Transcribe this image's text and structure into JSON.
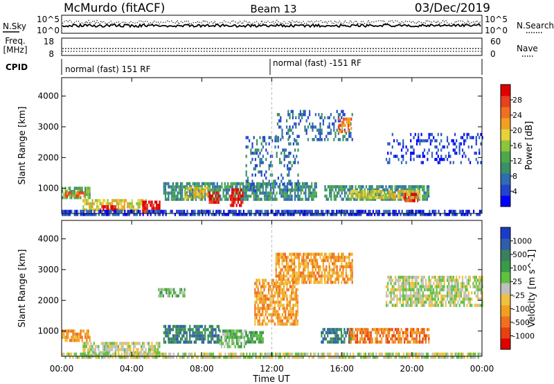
{
  "header": {
    "station": "McMurdo (fitACF)",
    "beam": "Beam 13",
    "date": "03/Dec/2019"
  },
  "top_panels": {
    "nsky_label": "N.Sky",
    "nsky_ticks": [
      "10^5",
      "10^0"
    ],
    "nsearch_label": "N.Search",
    "nsearch_ticks": [
      "10^5",
      "10^0"
    ],
    "freq_label": "Freq.",
    "freq_unit": "[MHz]",
    "freq_ticks": [
      "18",
      "8"
    ],
    "nave_label": "Nave",
    "nave_ticks": [
      "60",
      "0"
    ],
    "cpid_label": "CPID",
    "cpid_segments": [
      {
        "label": "normal (fast) 151 RF",
        "start_hour": 0,
        "end_hour": 12
      },
      {
        "label": "normal (fast) -151 RF",
        "start_hour": 12,
        "end_hour": 24
      }
    ]
  },
  "chart_data": [
    {
      "type": "heatmap",
      "title": "Power",
      "ylabel": "Slant Range [km]",
      "xlabel": "Time UT",
      "x_ticks": [
        "00:00",
        "04:00",
        "08:00",
        "12:00",
        "16:00",
        "20:00",
        "00:00"
      ],
      "xlim_hours": [
        0,
        24
      ],
      "y_ticks": [
        1000,
        2000,
        3000,
        4000
      ],
      "ylim": [
        180,
        4600
      ],
      "colorbar_label": "Power [dB]",
      "colorbar_ticks": [
        "4",
        "8",
        "12",
        "16",
        "20",
        "24",
        "28"
      ],
      "colorbar_colors": [
        "#0000ff",
        "#2244cc",
        "#2e6db3",
        "#3a8f66",
        "#4ea84a",
        "#8cc43c",
        "#e6d23a",
        "#f0a020",
        "#f07020",
        "#e84020",
        "#e00000"
      ],
      "blobs": [
        {
          "t0": 0.0,
          "t1": 1.6,
          "r0": 650,
          "r1": 1050,
          "level": 4
        },
        {
          "t0": 0.2,
          "t1": 1.3,
          "r0": 700,
          "r1": 900,
          "level": 8
        },
        {
          "t0": 1.2,
          "t1": 4.8,
          "r0": 300,
          "r1": 650,
          "level": 6
        },
        {
          "t0": 2.0,
          "t1": 3.2,
          "r0": 300,
          "r1": 450,
          "level": 10
        },
        {
          "t0": 4.6,
          "t1": 5.6,
          "r0": 250,
          "r1": 600,
          "level": 10
        },
        {
          "t0": 5.8,
          "t1": 14.5,
          "r0": 600,
          "r1": 1200,
          "level": 3
        },
        {
          "t0": 7.0,
          "t1": 8.4,
          "r0": 700,
          "r1": 1050,
          "level": 6
        },
        {
          "t0": 8.4,
          "t1": 9.0,
          "r0": 500,
          "r1": 900,
          "level": 10
        },
        {
          "t0": 9.6,
          "t1": 10.3,
          "r0": 450,
          "r1": 1000,
          "level": 10
        },
        {
          "t0": 10.5,
          "t1": 13.5,
          "r0": 900,
          "r1": 2700,
          "level": 2
        },
        {
          "t0": 12.2,
          "t1": 16.6,
          "r0": 2600,
          "r1": 3550,
          "level": 2
        },
        {
          "t0": 15.8,
          "t1": 16.5,
          "r0": 2800,
          "r1": 3300,
          "level": 8
        },
        {
          "t0": 15.0,
          "t1": 21.0,
          "r0": 650,
          "r1": 1100,
          "level": 3
        },
        {
          "t0": 16.5,
          "t1": 20.5,
          "r0": 650,
          "r1": 950,
          "level": 6
        },
        {
          "t0": 19.5,
          "t1": 20.3,
          "r0": 600,
          "r1": 850,
          "level": 9
        },
        {
          "t0": 0.0,
          "t1": 24.0,
          "r0": 190,
          "r1": 300,
          "level": 1
        },
        {
          "t0": 18.5,
          "t1": 24.0,
          "r0": 1800,
          "r1": 2800,
          "level": 1
        }
      ]
    },
    {
      "type": "heatmap",
      "title": "Velocity",
      "ylabel": "Slant Range [km]",
      "xlabel": "Time UT",
      "x_ticks": [
        "00:00",
        "04:00",
        "08:00",
        "12:00",
        "16:00",
        "20:00",
        "00:00"
      ],
      "xlim_hours": [
        0,
        24
      ],
      "y_ticks": [
        1000,
        2000,
        3000,
        4000
      ],
      "ylim": [
        180,
        4600
      ],
      "colorbar_label": "Velocity [m s^-1]",
      "colorbar_ticks": [
        "1000",
        "500",
        "100",
        "25",
        "-25",
        "-100",
        "-500",
        "-1000"
      ],
      "colorbar_colors": [
        "#1a3cc8",
        "#2e5eaa",
        "#3a8060",
        "#3a9a4a",
        "#60c040",
        "#c0c0c0",
        "#f0c040",
        "#f0a020",
        "#f07020",
        "#e84010",
        "#e00000"
      ],
      "blobs": [
        {
          "t0": 0.0,
          "t1": 1.6,
          "r0": 650,
          "r1": 1050,
          "level": 7
        },
        {
          "t0": 1.2,
          "t1": 5.6,
          "r0": 200,
          "r1": 650,
          "level": 5
        },
        {
          "t0": 5.8,
          "t1": 9.0,
          "r0": 600,
          "r1": 1200,
          "level": 2
        },
        {
          "t0": 9.0,
          "t1": 10.5,
          "r0": 500,
          "r1": 1050,
          "level": 4
        },
        {
          "t0": 10.5,
          "t1": 11.5,
          "r0": 600,
          "r1": 1000,
          "level": 3
        },
        {
          "t0": 11.0,
          "t1": 13.5,
          "r0": 1200,
          "r1": 2700,
          "level": 7
        },
        {
          "t0": 12.2,
          "t1": 16.6,
          "r0": 2600,
          "r1": 3550,
          "level": 7
        },
        {
          "t0": 14.8,
          "t1": 16.6,
          "r0": 650,
          "r1": 1100,
          "level": 2
        },
        {
          "t0": 16.4,
          "t1": 21.0,
          "r0": 600,
          "r1": 1100,
          "level": 8
        },
        {
          "t0": 5.5,
          "t1": 7.0,
          "r0": 2100,
          "r1": 2400,
          "level": 4
        },
        {
          "t0": 0.0,
          "t1": 24.0,
          "r0": 190,
          "r1": 300,
          "level": 5
        },
        {
          "t0": 18.5,
          "t1": 24.0,
          "r0": 1800,
          "r1": 2800,
          "level": 5
        }
      ]
    }
  ]
}
